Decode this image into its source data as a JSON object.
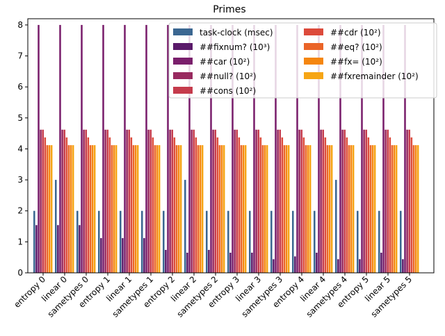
{
  "chart_data": {
    "type": "bar",
    "title": "Primes",
    "xlabel": "",
    "ylabel": "",
    "ylim": [
      0,
      8.2
    ],
    "yticks": [
      "0",
      "1",
      "2",
      "3",
      "4",
      "5",
      "6",
      "7",
      "8"
    ],
    "grid": false,
    "legend_position": "top-right",
    "categories": [
      "entropy 0",
      "linear 0",
      "sametypes 0",
      "entropy 1",
      "linear 1",
      "sametypes 1",
      "entropy 2",
      "linear 2",
      "sametypes 2",
      "entropy 3",
      "linear 3",
      "sametypes 3",
      "entropy 4",
      "linear 4",
      "sametypes 4",
      "entropy 5",
      "linear 5",
      "sametypes 5"
    ],
    "series": [
      {
        "name": "task-clock (msec)",
        "color": "#3b6791",
        "values": [
          2,
          3,
          2,
          2,
          2,
          2,
          2,
          3,
          2,
          2,
          2,
          2,
          2,
          2,
          3,
          2,
          2,
          2
        ]
      },
      {
        "name": "##fixnum? (10³)",
        "color": "#5a1a6a",
        "values": [
          1.54,
          1.54,
          1.54,
          1.12,
          1.12,
          1.12,
          0.74,
          0.65,
          0.74,
          0.65,
          0.65,
          0.44,
          0.53,
          0.65,
          0.44,
          0.44,
          0.65,
          0.44
        ]
      },
      {
        "name": "##car (10²)",
        "color": "#7a1f6c",
        "values": [
          8,
          8,
          8,
          8,
          8,
          8,
          8,
          8,
          8,
          8,
          8,
          8,
          8,
          8,
          8,
          8,
          8,
          8
        ]
      },
      {
        "name": "##null? (10²)",
        "color": "#982a5f",
        "values": [
          4.62,
          4.62,
          4.62,
          4.62,
          4.62,
          4.62,
          4.62,
          4.62,
          4.62,
          4.62,
          4.62,
          4.62,
          4.62,
          4.62,
          4.62,
          4.62,
          4.62,
          4.62
        ]
      },
      {
        "name": "##cons (10²)",
        "color": "#c53b4c",
        "values": [
          4.62,
          4.62,
          4.62,
          4.62,
          4.62,
          4.62,
          4.62,
          4.62,
          4.62,
          4.62,
          4.62,
          4.62,
          4.62,
          4.62,
          4.62,
          4.62,
          4.62,
          4.62
        ]
      },
      {
        "name": "##cdr (10²)",
        "color": "#dc4a3b",
        "values": [
          4.37,
          4.37,
          4.37,
          4.37,
          4.37,
          4.37,
          4.37,
          4.37,
          4.37,
          4.37,
          4.37,
          4.37,
          4.37,
          4.37,
          4.37,
          4.37,
          4.37,
          4.37
        ]
      },
      {
        "name": "##eq? (10²)",
        "color": "#ea6428",
        "values": [
          4.12,
          4.12,
          4.12,
          4.12,
          4.12,
          4.12,
          4.12,
          4.12,
          4.12,
          4.12,
          4.12,
          4.12,
          4.12,
          4.12,
          4.12,
          4.12,
          4.12,
          4.12
        ]
      },
      {
        "name": "##fx= (10²)",
        "color": "#f5860f",
        "values": [
          4.12,
          4.12,
          4.12,
          4.12,
          4.12,
          4.12,
          4.12,
          4.12,
          4.12,
          4.12,
          4.12,
          4.12,
          4.12,
          4.12,
          4.12,
          4.12,
          4.12,
          4.12
        ]
      },
      {
        "name": "##fxremainder (10²)",
        "color": "#f6a515",
        "values": [
          4.12,
          4.12,
          4.12,
          4.12,
          4.12,
          4.12,
          4.12,
          4.12,
          4.12,
          4.12,
          4.12,
          4.12,
          4.12,
          4.12,
          4.12,
          4.12,
          4.12,
          4.12
        ]
      }
    ]
  }
}
